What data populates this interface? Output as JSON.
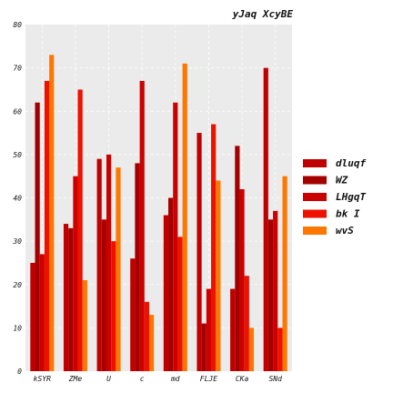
{
  "chart_data": {
    "type": "bar",
    "title": "yJaq XcyBE",
    "xlabel": "",
    "ylabel": "",
    "ylim": [
      0,
      80
    ],
    "yticks": [
      0,
      10,
      20,
      30,
      40,
      50,
      60,
      70,
      80
    ],
    "grid": true,
    "legend_position": "right",
    "categories": [
      "kSYR",
      "ZMe",
      "U",
      "c",
      "md",
      "FLJE",
      "CKa",
      "SNd"
    ],
    "series": [
      {
        "name": "dluqf",
        "color": "#c00000",
        "values": [
          25,
          34,
          49,
          26,
          36,
          55,
          19,
          70
        ]
      },
      {
        "name": "WZ",
        "color": "#a50000",
        "values": [
          62,
          33,
          35,
          48,
          40,
          11,
          52,
          35
        ]
      },
      {
        "name": "LHgqT",
        "color": "#cc0000",
        "values": [
          27,
          45,
          50,
          67,
          62,
          19,
          42,
          37
        ]
      },
      {
        "name": "bk I",
        "color": "#ee1100",
        "values": [
          67,
          65,
          30,
          16,
          31,
          57,
          22,
          10
        ]
      },
      {
        "name": "wvS",
        "color": "#ff7700",
        "values": [
          73,
          21,
          47,
          13,
          71,
          44,
          10,
          45
        ]
      }
    ]
  }
}
